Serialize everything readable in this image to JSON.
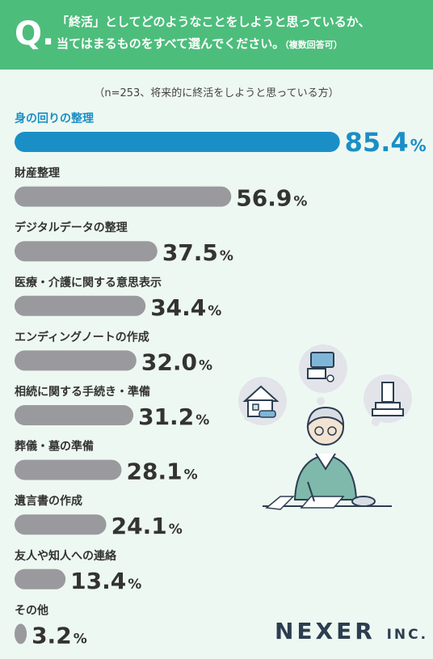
{
  "question": {
    "mark": "Q.",
    "line1": "「終活」としてどのようなことをしようと思っているか、",
    "line2": "当てはまるものをすべて選んでください。",
    "note": "（複数回答可）"
  },
  "sample_note": "（n=253、将来的に終活をしようと思っている方）",
  "brand": {
    "name": "NEXER",
    "suffix": "INC."
  },
  "colors": {
    "header": "#4dbd7c",
    "highlight": "#1a8fc6",
    "bar": "#9a9a9e",
    "text": "#333333"
  },
  "chart_data": {
    "type": "bar",
    "orientation": "horizontal",
    "unit": "%",
    "categories": [
      "身の回りの整理",
      "財産整理",
      "デジタルデータの整理",
      "医療・介護に関する意思表示",
      "エンディングノートの作成",
      "相続に関する手続き・準備",
      "葬儀・墓の準備",
      "遺言書の作成",
      "友人や知人への連絡",
      "その他"
    ],
    "values": [
      85.4,
      56.9,
      37.5,
      34.4,
      32.0,
      31.2,
      28.1,
      24.1,
      13.4,
      3.2
    ],
    "value_labels": [
      "85.4",
      "56.9",
      "37.5",
      "34.4",
      "32.0",
      "31.2",
      "28.1",
      "24.1",
      "13.4",
      "3.2"
    ],
    "highlight_index": 0,
    "xlim": [
      0,
      100
    ]
  }
}
